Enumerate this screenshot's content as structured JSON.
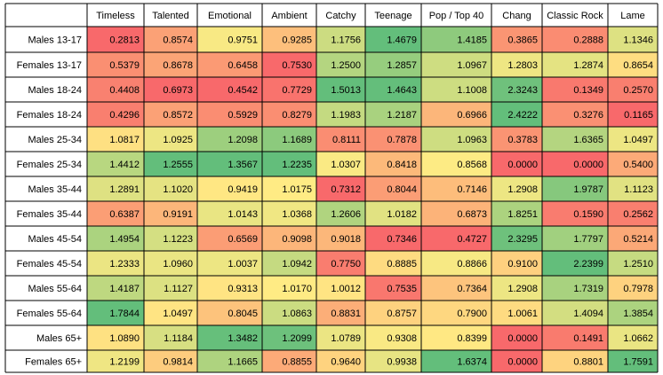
{
  "chart_data": {
    "type": "heatmap",
    "title": "",
    "xlabel": "",
    "ylabel": "",
    "columns": [
      "Timeless",
      "Talented",
      "Emotional",
      "Ambient",
      "Catchy",
      "Teenage",
      "Pop / Top 40",
      "Chang",
      "Classic Rock",
      "Lame"
    ],
    "rows": [
      "Males 13-17",
      "Females 13-17",
      "Males 18-24",
      "Females 18-24",
      "Males 25-34",
      "Females 25-34",
      "Males 35-44",
      "Females 35-44",
      "Males 45-54",
      "Females 45-54",
      "Males 55-64",
      "Females 55-64",
      "Males 65+",
      "Females 65+"
    ],
    "values": [
      [
        "0.2813",
        "0.8574",
        "0.9751",
        "0.9285",
        "1.1756",
        "1.4679",
        "1.4185",
        "0.3865",
        "0.2888",
        "1.1346"
      ],
      [
        "0.5379",
        "0.8678",
        "0.6458",
        "0.7530",
        "1.2500",
        "1.2857",
        "1.0967",
        "1.2803",
        "1.2874",
        "0.8654"
      ],
      [
        "0.4408",
        "0.6973",
        "0.4542",
        "0.7729",
        "1.5013",
        "1.4643",
        "1.1008",
        "2.3243",
        "0.1349",
        "0.2570"
      ],
      [
        "0.4296",
        "0.8572",
        "0.5929",
        "0.8279",
        "1.1983",
        "1.2187",
        "0.6966",
        "2.4222",
        "0.3276",
        "0.1165"
      ],
      [
        "1.0817",
        "1.0925",
        "1.2098",
        "1.1689",
        "0.8111",
        "0.7878",
        "1.0963",
        "0.3783",
        "1.6365",
        "1.0497"
      ],
      [
        "1.4412",
        "1.2555",
        "1.3567",
        "1.2235",
        "1.0307",
        "0.8418",
        "0.8568",
        "0.0000",
        "0.0000",
        "0.5400"
      ],
      [
        "1.2891",
        "1.1020",
        "0.9419",
        "1.0175",
        "0.7312",
        "0.8044",
        "0.7146",
        "1.2908",
        "1.9787",
        "1.1123"
      ],
      [
        "0.6387",
        "0.9191",
        "1.0143",
        "1.0368",
        "1.2606",
        "1.0182",
        "0.6873",
        "1.8251",
        "0.1590",
        "0.2562"
      ],
      [
        "1.4954",
        "1.1223",
        "0.6569",
        "0.9098",
        "0.9018",
        "0.7346",
        "0.4727",
        "2.3295",
        "1.7797",
        "0.5214"
      ],
      [
        "1.2333",
        "1.0960",
        "1.0037",
        "1.0942",
        "0.7750",
        "0.8885",
        "0.8866",
        "0.9100",
        "2.2399",
        "1.2510"
      ],
      [
        "1.4187",
        "1.1127",
        "0.9313",
        "1.0170",
        "1.0012",
        "0.7535",
        "0.7364",
        "1.2908",
        "1.7319",
        "0.7978"
      ],
      [
        "1.7844",
        "1.0497",
        "0.8045",
        "1.0863",
        "0.8831",
        "0.8757",
        "0.7900",
        "1.0061",
        "1.4094",
        "1.3854"
      ],
      [
        "1.0890",
        "1.1184",
        "1.3482",
        "1.2099",
        "1.0789",
        "0.9308",
        "0.8399",
        "0.0000",
        "0.1491",
        "1.0662"
      ],
      [
        "1.2199",
        "0.9814",
        "1.1665",
        "0.8855",
        "0.9640",
        "0.9938",
        "1.6374",
        "0.0000",
        "0.8801",
        "1.7591"
      ]
    ],
    "color_scale": "per-column: red (low) - yellow (mid) - green (high)",
    "colors": {
      "low": "#f8696b",
      "mid": "#ffeb84",
      "high": "#63be7b",
      "grid": "#000000",
      "header_bg": "#ffffff"
    },
    "grid": true,
    "legend": "none"
  }
}
